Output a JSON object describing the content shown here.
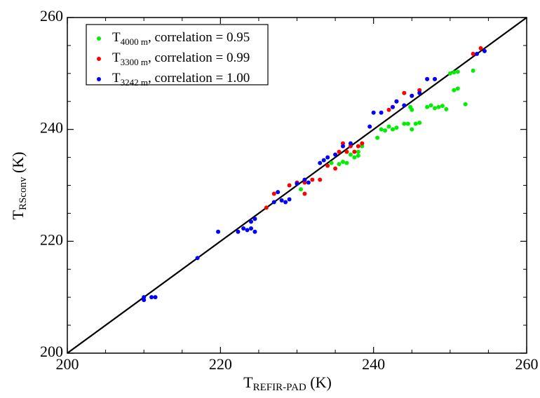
{
  "chart_data": {
    "type": "scatter",
    "x_label": "TREFIR-PAD (K)",
    "y_label": "TRSconv (K)",
    "xlim": [
      200,
      260
    ],
    "ylim": [
      200,
      260
    ],
    "xticks": [
      200,
      220,
      240,
      260
    ],
    "yticks": [
      200,
      220,
      240,
      260
    ],
    "legend": "upper left",
    "series": [
      {
        "name": "T4000 m, correlation = 0.95",
        "color": "#00ee00",
        "x": [
          230.5,
          234.5,
          235.5,
          236,
          236.5,
          237,
          237.5,
          238,
          238.5,
          238,
          240.5,
          241,
          241.5,
          242,
          242.5,
          243,
          244,
          244.5,
          245,
          245.5,
          246,
          244.8,
          245,
          247,
          247.5,
          248,
          248.5,
          249,
          249.5,
          250,
          250.5,
          251,
          250.5,
          251,
          252,
          253
        ],
        "values": [
          229.3,
          234,
          233.8,
          234.2,
          234,
          235.5,
          235,
          236,
          237,
          235.3,
          238.5,
          240,
          239.8,
          240.5,
          240,
          240.3,
          241,
          241,
          240,
          241,
          241.2,
          244,
          243.5,
          244,
          244.3,
          243.8,
          244,
          244.2,
          243.6,
          250,
          250.2,
          247.3,
          247,
          250.3,
          244.5,
          250.5
        ]
      },
      {
        "name": "T3300 m, correlation = 0.99",
        "color": "#ff0000",
        "x": [
          226,
          227,
          229,
          230,
          231,
          231,
          232,
          233,
          234,
          235,
          235.5,
          236,
          236.5,
          237,
          237.5,
          238,
          238.5,
          242,
          242.5,
          243,
          244,
          245,
          246,
          247,
          248,
          253,
          254
        ],
        "values": [
          226,
          228.5,
          230,
          230.5,
          230.5,
          228.5,
          231,
          231,
          233.5,
          233,
          236,
          237.5,
          236,
          237,
          236,
          237,
          237.5,
          243.5,
          244,
          245,
          246.5,
          246,
          247,
          249,
          249,
          253.5,
          254.5
        ]
      },
      {
        "name": "T3242 m, correlation = 1.00",
        "color": "#0000ff",
        "x": [
          210,
          210,
          211,
          211.5,
          217,
          219.7,
          222.3,
          223,
          223.5,
          224,
          224.5,
          224,
          224.5,
          227,
          227.5,
          228,
          228.5,
          229,
          230,
          231,
          231.5,
          233,
          233.5,
          234,
          235,
          236,
          237,
          239.5,
          240,
          241,
          242.5,
          243,
          244,
          245,
          246,
          247,
          248,
          253.5,
          254.5
        ],
        "values": [
          209.5,
          210,
          210,
          210,
          217,
          221.7,
          221.7,
          222.3,
          222,
          223.5,
          224,
          222.3,
          221.7,
          227,
          228.8,
          227.3,
          227,
          227.5,
          230.3,
          231,
          230.5,
          234,
          234.5,
          235,
          235.5,
          237,
          237.5,
          240.5,
          243,
          243,
          244,
          245,
          244.3,
          246,
          246.5,
          249,
          249,
          253.5,
          254
        ]
      }
    ]
  }
}
